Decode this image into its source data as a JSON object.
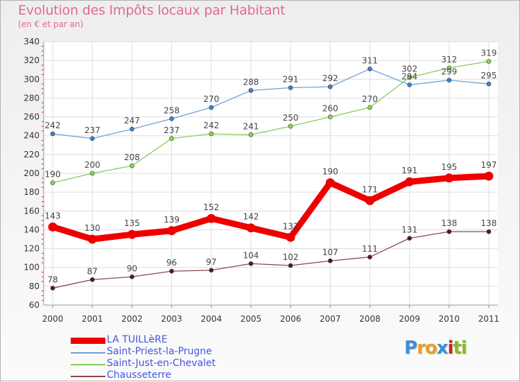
{
  "chart_data": {
    "type": "line",
    "title": "Evolution des Impôts locaux par Habitant",
    "subtitle": "(en € et par an)",
    "categories": [
      "2000",
      "2001",
      "2002",
      "2003",
      "2004",
      "2005",
      "2006",
      "2007",
      "2008",
      "2009",
      "2010",
      "2011"
    ],
    "ylim": [
      60,
      340
    ],
    "yticks": [
      60,
      80,
      100,
      120,
      140,
      160,
      180,
      200,
      220,
      240,
      260,
      280,
      300,
      320,
      340
    ],
    "grid": true,
    "legend_position": "bottom-left",
    "series": [
      {
        "name": "Saint-Just-en-Chevalet",
        "color": "#88cc55",
        "marker": "#88dd44",
        "emphasis": false,
        "values": [
          190,
          200,
          208,
          237,
          242,
          241,
          250,
          260,
          270,
          302,
          312,
          319
        ]
      },
      {
        "name": "Saint-Priest-la-Prugne",
        "color": "#6ea3d8",
        "marker": "#3a86cf",
        "emphasis": false,
        "values": [
          242,
          237,
          247,
          258,
          270,
          288,
          291,
          292,
          311,
          294,
          299,
          295
        ]
      },
      {
        "name": "Chausseterre",
        "color": "#8a4a4a",
        "marker": "#5a1a1a",
        "emphasis": false,
        "values": [
          78,
          87,
          90,
          96,
          97,
          104,
          102,
          107,
          111,
          131,
          138,
          138
        ]
      },
      {
        "name": "LA TUILLèRE",
        "color": "#ee0000",
        "marker": "#ee0000",
        "emphasis": true,
        "values": [
          143,
          130,
          135,
          139,
          152,
          142,
          132,
          190,
          171,
          191,
          195,
          197
        ]
      }
    ],
    "legend_order": [
      "LA TUILLèRE",
      "Saint-Priest-la-Prugne",
      "Saint-Just-en-Chevalet",
      "Chausseterre"
    ]
  },
  "legend": {
    "items": [
      {
        "label": "LA TUILLèRE",
        "color": "#ee0000"
      },
      {
        "label": "Saint-Priest-la-Prugne",
        "color": "#6ea3d8"
      },
      {
        "label": "Saint-Just-en-Chevalet",
        "color": "#88cc55"
      },
      {
        "label": "Chausseterre",
        "color": "#8a4a4a"
      }
    ]
  },
  "logo": {
    "letters": [
      "P",
      "r",
      "o",
      "x",
      "i",
      "t",
      "i"
    ],
    "colors": [
      "#3d8fd6",
      "#e8a020",
      "#e8a020",
      "#3d8fd6",
      "#d02020",
      "#88bb22",
      "#88bb22"
    ]
  }
}
